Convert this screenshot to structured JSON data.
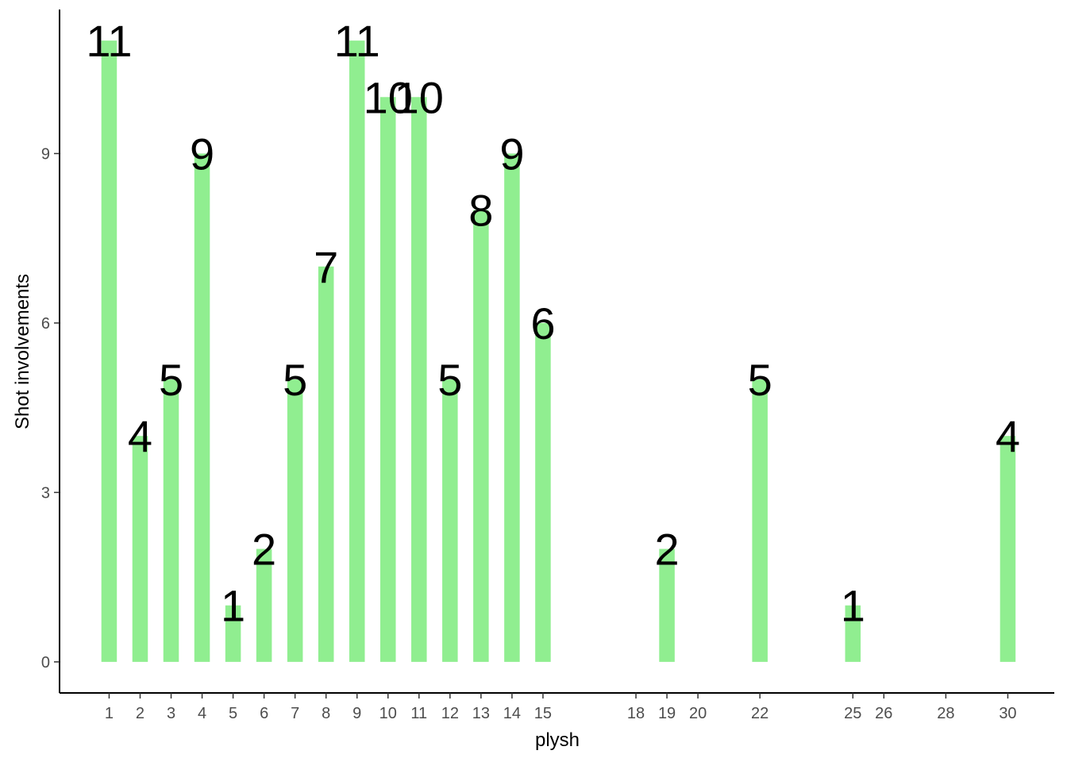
{
  "chart_data": {
    "type": "bar",
    "xlabel": "plysh",
    "ylabel": "Shot involvements",
    "x": [
      1,
      2,
      3,
      4,
      5,
      6,
      7,
      8,
      9,
      10,
      11,
      12,
      13,
      14,
      15,
      19,
      22,
      25,
      30
    ],
    "values": [
      11,
      4,
      5,
      9,
      1,
      2,
      5,
      7,
      11,
      10,
      10,
      5,
      8,
      9,
      6,
      2,
      5,
      1,
      4
    ],
    "x_ticks": [
      1,
      2,
      3,
      4,
      5,
      6,
      7,
      8,
      9,
      10,
      11,
      12,
      13,
      14,
      15,
      18,
      19,
      20,
      22,
      25,
      26,
      28,
      30
    ],
    "y_ticks": [
      0,
      3,
      6,
      9
    ],
    "xlim": [
      -0.6,
      31.5
    ],
    "ylim": [
      -0.55,
      11.55
    ],
    "grid": false,
    "bar_color": "#90EE90",
    "show_data_labels": true
  }
}
